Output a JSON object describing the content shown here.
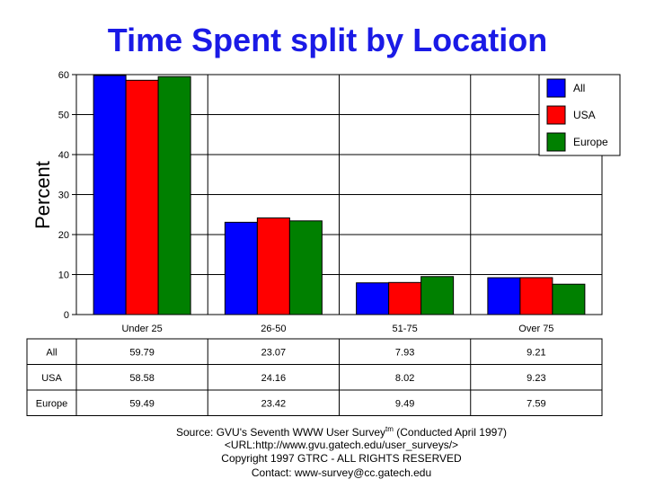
{
  "chart_data": {
    "type": "bar",
    "title": "Time Spent split by Location",
    "ylabel": "Percent",
    "xlabel": "",
    "ylim": [
      0,
      60
    ],
    "yticks": [
      0,
      10,
      20,
      30,
      40,
      50,
      60
    ],
    "categories": [
      "Under 25",
      "26-50",
      "51-75",
      "Over 75"
    ],
    "series": [
      {
        "name": "All",
        "color": "#0000ff",
        "values": [
          59.79,
          23.07,
          7.93,
          9.21
        ],
        "labels": [
          "59.79",
          "23.07",
          "7.93",
          "9.21"
        ]
      },
      {
        "name": "USA",
        "color": "#ff0000",
        "values": [
          58.58,
          24.16,
          8.02,
          9.23
        ],
        "labels": [
          "58.58",
          "24.16",
          "8.02",
          "9.23"
        ]
      },
      {
        "name": "Europe",
        "color": "#008000",
        "values": [
          59.49,
          23.42,
          9.49,
          7.59
        ],
        "labels": [
          "59.49",
          "23.42",
          "9.49",
          "7.59"
        ]
      }
    ],
    "grid": true,
    "legend": "top-right"
  },
  "footer": {
    "source_prefix": "Source: GVU's Seventh WWW User Survey",
    "source_tm": "tm",
    "source_suffix": " (Conducted April 1997)",
    "url": "<URL:http://www.gvu.gatech.edu/user_surveys/>",
    "copyright": "Copyright 1997 GTRC - ALL RIGHTS RESERVED",
    "contact": "Contact: www-survey@cc.gatech.edu"
  }
}
